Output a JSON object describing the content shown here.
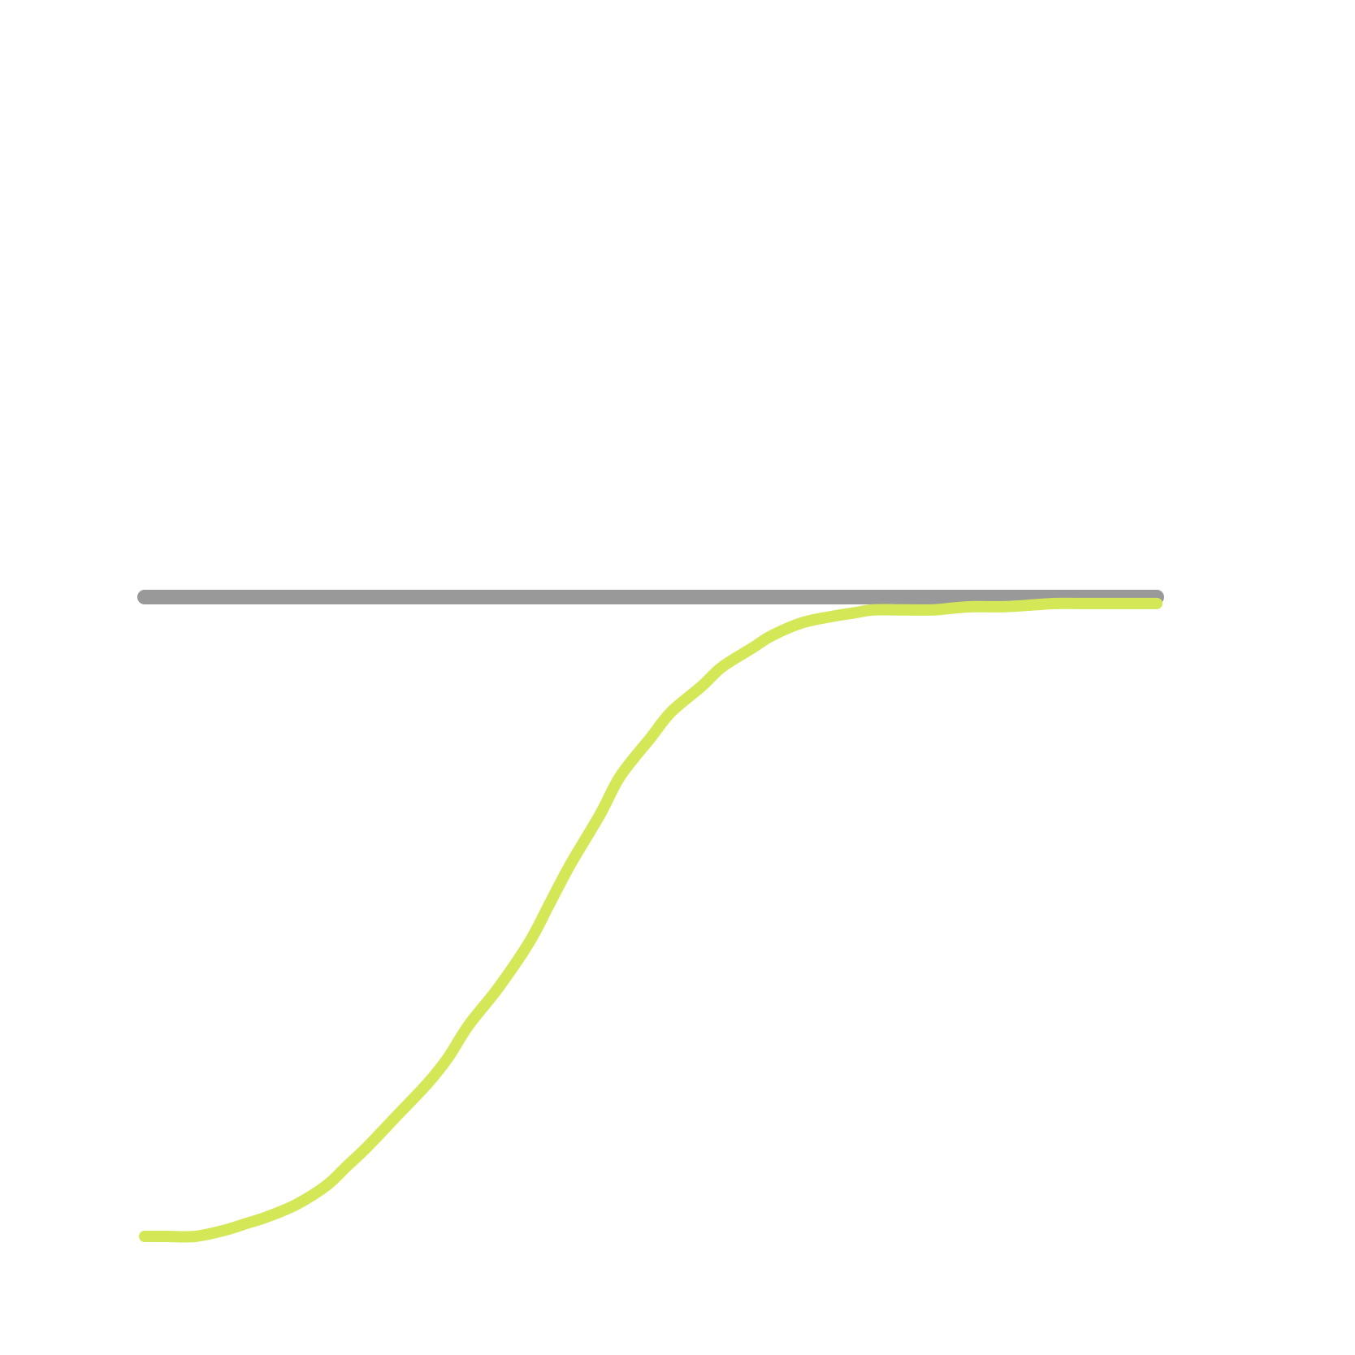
{
  "chart_data": {
    "type": "line",
    "title": "",
    "xlabel": "",
    "ylabel": "",
    "grid": false,
    "legend": "none",
    "xlim": [
      0,
      1
    ],
    "ylim": [
      0,
      1
    ],
    "series": [
      {
        "color": "#999999",
        "style": "reference",
        "x": [
          0,
          1
        ],
        "y": [
          1,
          1
        ]
      },
      {
        "color": "#d4e757",
        "style": "curve",
        "x": [
          0,
          0.02,
          0.05,
          0.08,
          0.1,
          0.12,
          0.15,
          0.18,
          0.2,
          0.22,
          0.25,
          0.28,
          0.3,
          0.32,
          0.35,
          0.38,
          0.4,
          0.42,
          0.45,
          0.47,
          0.5,
          0.52,
          0.55,
          0.57,
          0.6,
          0.62,
          0.65,
          0.68,
          0.7,
          0.72,
          0.75,
          0.78,
          0.8,
          0.82,
          0.85,
          0.88,
          0.9,
          0.93,
          0.95,
          0.97,
          1.0
        ],
        "y": [
          0,
          0,
          0,
          0.01,
          0.02,
          0.03,
          0.05,
          0.08,
          0.11,
          0.14,
          0.19,
          0.24,
          0.28,
          0.33,
          0.39,
          0.46,
          0.52,
          0.58,
          0.66,
          0.72,
          0.78,
          0.82,
          0.86,
          0.89,
          0.92,
          0.94,
          0.96,
          0.97,
          0.975,
          0.98,
          0.98,
          0.98,
          0.983,
          0.985,
          0.985,
          0.988,
          0.99,
          0.99,
          0.99,
          0.99,
          0.99
        ]
      }
    ]
  }
}
